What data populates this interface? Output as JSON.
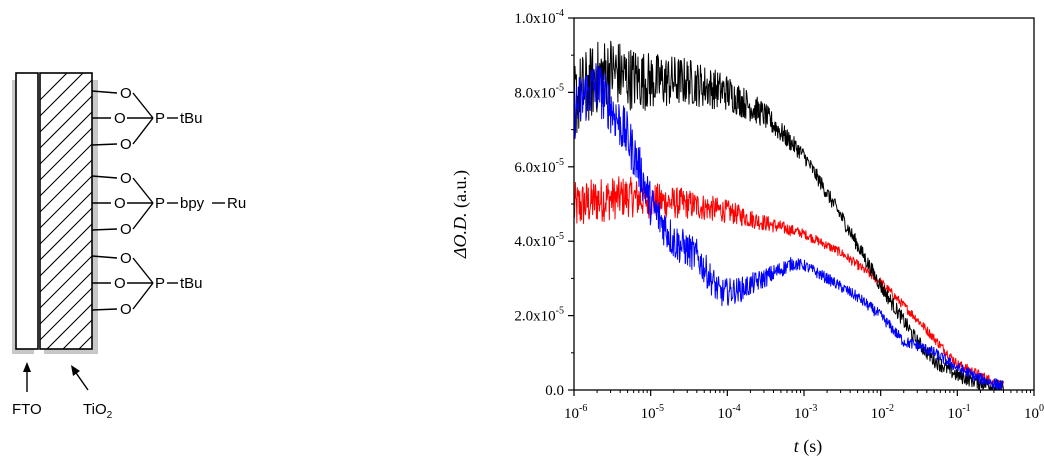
{
  "scheme": {
    "electrode_label": "FTO",
    "oxide_label": "TiO",
    "oxide_subscript": "2",
    "anchors": [
      {
        "atom": "P",
        "substituent": "tBu"
      },
      {
        "atom": "P",
        "substituent": "bpy",
        "metal": "Ru"
      },
      {
        "atom": "P",
        "substituent": "tBu"
      }
    ],
    "oxygen_label": "O"
  },
  "chart_data": {
    "type": "line",
    "xlabel_var": "t",
    "xlabel_unit": "(s)",
    "ylabel_var": "ΔO.D.",
    "ylabel_unit": "(a.u.)",
    "xscale": "log",
    "xlim": [
      1e-06,
      1
    ],
    "ylim": [
      0,
      0.0001
    ],
    "x_ticks": [
      {
        "value": 1e-06,
        "base": "10",
        "exp": "-6"
      },
      {
        "value": 1e-05,
        "base": "10",
        "exp": "-5"
      },
      {
        "value": 0.0001,
        "base": "10",
        "exp": "-4"
      },
      {
        "value": 0.001,
        "base": "10",
        "exp": "-3"
      },
      {
        "value": 0.01,
        "base": "10",
        "exp": "-2"
      },
      {
        "value": 0.1,
        "base": "10",
        "exp": "-1"
      },
      {
        "value": 1,
        "base": "10",
        "exp": "0"
      }
    ],
    "y_ticks": [
      {
        "value": 0,
        "mant": "0.0",
        "exp": ""
      },
      {
        "value": 2e-05,
        "mant": "2.0x10",
        "exp": "-5"
      },
      {
        "value": 4e-05,
        "mant": "4.0x10",
        "exp": "-5"
      },
      {
        "value": 6e-05,
        "mant": "6.0x10",
        "exp": "-5"
      },
      {
        "value": 8e-05,
        "mant": "8.0x10",
        "exp": "-5"
      },
      {
        "value": 0.0001,
        "mant": "1.0x10",
        "exp": "-4"
      }
    ],
    "grid": false,
    "legend": "none",
    "series": [
      {
        "color": "#ff0000",
        "noise": 2.5e-06,
        "x": [
          1e-06,
          2e-06,
          5e-06,
          1e-05,
          3e-05,
          0.0001,
          0.0003,
          0.001,
          0.003,
          0.01,
          0.03,
          0.06,
          0.1,
          0.2,
          0.4
        ],
        "y": [
          4.9e-05,
          5.1e-05,
          5.2e-05,
          5.1e-05,
          5e-05,
          4.8e-05,
          4.5e-05,
          4.2e-05,
          3.7e-05,
          2.9e-05,
          1.9e-05,
          1.2e-05,
          7e-06,
          4e-06,
          1e-06
        ]
      },
      {
        "color": "#000000",
        "noise": 4e-06,
        "x": [
          1e-06,
          2e-06,
          3e-06,
          5e-06,
          1e-05,
          3e-05,
          0.0001,
          0.0003,
          0.001,
          0.003,
          0.01,
          0.03,
          0.05,
          0.1,
          0.2,
          0.4
        ],
        "y": [
          7.8e-05,
          8.4e-05,
          8.6e-05,
          8.4e-05,
          8.3e-05,
          8.3e-05,
          8e-05,
          7.4e-05,
          6.3e-05,
          4.7e-05,
          2.8e-05,
          1.3e-05,
          8e-06,
          4e-06,
          2e-06,
          5e-07
        ]
      },
      {
        "color": "#0000ff",
        "noise": 3e-06,
        "x": [
          1e-06,
          1.5e-06,
          2e-06,
          3e-06,
          5e-06,
          7e-06,
          1e-05,
          2e-05,
          4e-05,
          8e-05,
          0.00015,
          0.0003,
          0.0007,
          0.001,
          0.002,
          0.005,
          0.01,
          0.02,
          0.03,
          0.05,
          0.1,
          0.2,
          0.4
        ],
        "y": [
          7.5e-05,
          8e-05,
          8.2e-05,
          7.6e-05,
          6.8e-05,
          6e-05,
          5e-05,
          4e-05,
          3.6e-05,
          2.6e-05,
          2.7e-05,
          3e-05,
          3.4e-05,
          3.35e-05,
          3e-05,
          2.5e-05,
          2e-05,
          1.3e-05,
          1.2e-05,
          1e-05,
          6e-06,
          3e-06,
          1e-06
        ]
      }
    ]
  }
}
